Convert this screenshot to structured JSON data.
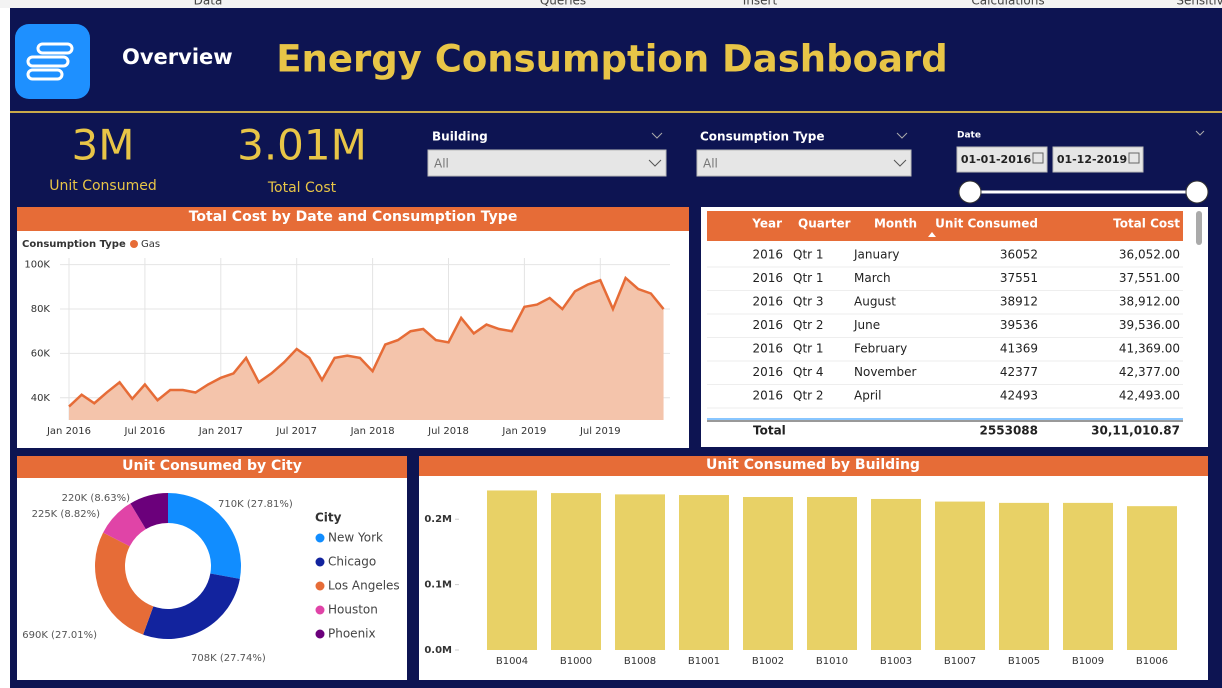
{
  "menu": [
    "Data",
    "Queries",
    "Insert",
    "Calculations",
    "Sensitiv"
  ],
  "header": {
    "page": "Overview",
    "title": "Energy Consumption Dashboard"
  },
  "kpis": [
    {
      "value": "3M",
      "label": "Unit Consumed"
    },
    {
      "value": "3.01M",
      "label": "Total Cost"
    }
  ],
  "filters": {
    "building": {
      "label": "Building",
      "value": "All"
    },
    "consumption_type": {
      "label": "Consumption Type",
      "value": "All"
    },
    "date": {
      "label": "Date",
      "from": "01-01-2016",
      "to": "01-12-2019"
    }
  },
  "table": {
    "columns": [
      "Year",
      "Quarter",
      "Month",
      "Unit Consumed",
      "Total Cost"
    ],
    "rows": [
      [
        "2016",
        "Qtr 1",
        "January",
        "36052",
        "36,052.00"
      ],
      [
        "2016",
        "Qtr 1",
        "March",
        "37551",
        "37,551.00"
      ],
      [
        "2016",
        "Qtr 3",
        "August",
        "38912",
        "38,912.00"
      ],
      [
        "2016",
        "Qtr 2",
        "June",
        "39536",
        "39,536.00"
      ],
      [
        "2016",
        "Qtr 1",
        "February",
        "41369",
        "41,369.00"
      ],
      [
        "2016",
        "Qtr 4",
        "November",
        "42377",
        "42,377.00"
      ],
      [
        "2016",
        "Qtr 2",
        "April",
        "42493",
        "42,493.00"
      ]
    ],
    "total": [
      "Total",
      "2553088",
      "30,11,010.87"
    ]
  },
  "chart_data": [
    {
      "type": "line",
      "title": "Total Cost by Date and Consumption Type",
      "legend_title": "Consumption Type",
      "x": [
        "2016-01",
        "2016-02",
        "2016-03",
        "2016-04",
        "2016-05",
        "2016-06",
        "2016-07",
        "2016-08",
        "2016-09",
        "2016-10",
        "2016-11",
        "2016-12",
        "2017-01",
        "2017-02",
        "2017-03",
        "2017-04",
        "2017-05",
        "2017-06",
        "2017-07",
        "2017-08",
        "2017-09",
        "2017-10",
        "2017-11",
        "2017-12",
        "2018-01",
        "2018-02",
        "2018-03",
        "2018-04",
        "2018-05",
        "2018-06",
        "2018-07",
        "2018-08",
        "2018-09",
        "2018-10",
        "2018-11",
        "2018-12",
        "2019-01",
        "2019-02",
        "2019-03",
        "2019-04",
        "2019-05",
        "2019-06",
        "2019-07",
        "2019-08",
        "2019-09",
        "2019-10",
        "2019-11",
        "2019-12"
      ],
      "series": [
        {
          "name": "Gas",
          "color": "#e66c37",
          "fill": "#f4c4ab",
          "values": [
            36052,
            41369,
            37551,
            42493,
            47000,
            39536,
            46000,
            38912,
            43500,
            43500,
            42377,
            46000,
            49000,
            51000,
            58000,
            47000,
            51000,
            56000,
            62000,
            58000,
            48000,
            58000,
            59000,
            58000,
            52000,
            64000,
            66000,
            70000,
            71000,
            66000,
            65000,
            76000,
            69000,
            73000,
            71000,
            70000,
            81000,
            82000,
            85000,
            80000,
            88000,
            91000,
            93000,
            80000,
            94000,
            89000,
            87000,
            80000
          ]
        }
      ],
      "ylim": [
        30000,
        103000
      ],
      "yticks": [
        {
          "value": 40000,
          "label": "40K"
        },
        {
          "value": 60000,
          "label": "60K"
        },
        {
          "value": 80000,
          "label": "80K"
        },
        {
          "value": 100000,
          "label": "100K"
        }
      ],
      "xticks": [
        {
          "value": "2016-01",
          "label": "Jan 2016"
        },
        {
          "value": "2016-07",
          "label": "Jul 2016"
        },
        {
          "value": "2017-01",
          "label": "Jan 2017"
        },
        {
          "value": "2017-07",
          "label": "Jul 2017"
        },
        {
          "value": "2018-01",
          "label": "Jan 2018"
        },
        {
          "value": "2018-07",
          "label": "Jul 2018"
        },
        {
          "value": "2019-01",
          "label": "Jan 2019"
        },
        {
          "value": "2019-07",
          "label": "Jul 2019"
        }
      ],
      "grid": true
    },
    {
      "type": "donut",
      "title": "Unit Consumed by City",
      "legend_title": "City",
      "categories": [
        "New York",
        "Chicago",
        "Los Angeles",
        "Houston",
        "Phoenix"
      ],
      "values": [
        710000,
        708000,
        690000,
        225000,
        220000
      ],
      "value_labels": [
        "710K (27.81%)",
        "708K (27.74%)",
        "690K (27.01%)",
        "225K (8.82%)",
        "220K (8.63%)"
      ],
      "colors": [
        "#118dff",
        "#12239e",
        "#e66c37",
        "#e044a7",
        "#6b007b"
      ]
    },
    {
      "type": "bar",
      "title": "Unit Consumed by Building",
      "categories": [
        "B1004",
        "B1000",
        "B1008",
        "B1001",
        "B1002",
        "B1010",
        "B1003",
        "B1007",
        "B1005",
        "B1009",
        "B1006"
      ],
      "values": [
        244000,
        240000,
        238000,
        237000,
        234000,
        234000,
        231000,
        227000,
        225000,
        225000,
        220000
      ],
      "color": "#e8d166",
      "ylim": [
        0,
        260000
      ],
      "yticks": [
        {
          "value": 0,
          "label": "0.0M"
        },
        {
          "value": 100000,
          "label": "0.1M"
        },
        {
          "value": 200000,
          "label": "0.2M"
        }
      ]
    }
  ]
}
